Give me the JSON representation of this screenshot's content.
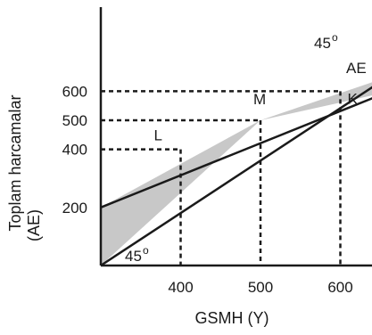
{
  "chart_data": {
    "type": "line",
    "xlabel": "GSMH (Y)",
    "ylabel_lines": [
      "Toplam harcamalar",
      "(AE)"
    ],
    "x_ticks": [
      {
        "value": 400,
        "label": "400"
      },
      {
        "value": 500,
        "label": "500"
      },
      {
        "value": 600,
        "label": "600"
      }
    ],
    "y_ticks": [
      {
        "value": 200,
        "label": "200"
      },
      {
        "value": 400,
        "label": "400"
      },
      {
        "value": 500,
        "label": "500"
      },
      {
        "value": 600,
        "label": "600"
      }
    ],
    "xlim": [
      300,
      700
    ],
    "ylim": [
      0,
      640
    ],
    "series": [
      {
        "name": "45o",
        "role": "45-degree-line",
        "x": [
          300,
          660
        ],
        "y": [
          0,
          650
        ]
      },
      {
        "name": "AE",
        "role": "aggregate-expenditure",
        "x": [
          300,
          680
        ],
        "y": [
          200,
          620
        ]
      }
    ],
    "points": [
      {
        "label": "M",
        "x": 500,
        "y": 500
      },
      {
        "label": "L",
        "x": 400,
        "y": 400
      },
      {
        "label": "K",
        "x": 600,
        "y": 600
      }
    ],
    "labels": {
      "line_45_top": "45",
      "line_45_bottom": "45",
      "degree_mark": "o",
      "ae": "AE"
    },
    "colors": {
      "line": "#1a1a1a",
      "shade": "#c8c8c8"
    }
  }
}
